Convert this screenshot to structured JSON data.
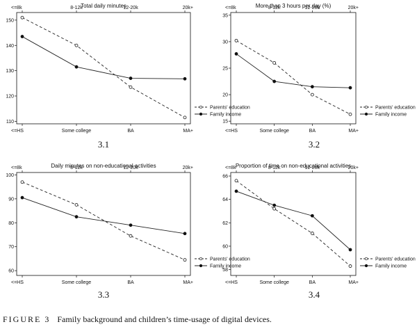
{
  "figure": {
    "caption_label": "FIGURE 3",
    "caption_text": "Family background and children’s time-usage of digital devices."
  },
  "chart_data": [
    {
      "type": "line",
      "panel_label": "3.1",
      "title": "Total daily minutes",
      "x_bottom": [
        "<=HS",
        "Some college",
        "BA",
        "MA+"
      ],
      "x_top": [
        "<=8k",
        "8-12k",
        "12-20k",
        "20k+"
      ],
      "ylim": [
        109,
        153
      ],
      "yticks": [
        110,
        120,
        130,
        140,
        150
      ],
      "series": [
        {
          "name": "Parents' education",
          "style": "dashed",
          "marker": "open-circle",
          "values": [
            151,
            140,
            123.5,
            111.5
          ]
        },
        {
          "name": "Family income",
          "style": "solid",
          "marker": "filled-circle",
          "values": [
            143.5,
            131.5,
            127,
            126.8
          ]
        }
      ],
      "legend": "bottom-right"
    },
    {
      "type": "line",
      "panel_label": "3.2",
      "title": "More than 3 hours per day (%)",
      "x_bottom": [
        "<=HS",
        "Some college",
        "BA",
        "MA+"
      ],
      "x_top": [
        "<=8k",
        "8-12k",
        "12-20k",
        "20k+"
      ],
      "ylim": [
        14.5,
        35.5
      ],
      "yticks": [
        15,
        20,
        25,
        30,
        35
      ],
      "series": [
        {
          "name": "Parents' education",
          "style": "dashed",
          "marker": "open-circle",
          "values": [
            30.2,
            26,
            20,
            16.3
          ]
        },
        {
          "name": "Family income",
          "style": "solid",
          "marker": "filled-circle",
          "values": [
            27.7,
            22.5,
            21.5,
            21.3
          ]
        }
      ],
      "legend": "bottom-right"
    },
    {
      "type": "line",
      "panel_label": "3.3",
      "title": "Daily minutes on non-educational activities",
      "x_bottom": [
        "<=HS",
        "Some college",
        "BA",
        "MA+"
      ],
      "x_top": [
        "<=8k",
        "8-12k",
        "12-20k",
        "20k+"
      ],
      "ylim": [
        58,
        101
      ],
      "yticks": [
        60,
        70,
        80,
        90,
        100
      ],
      "series": [
        {
          "name": "Parents' education",
          "style": "dashed",
          "marker": "open-circle",
          "values": [
            97,
            87.5,
            74.5,
            64.5
          ]
        },
        {
          "name": "Family income",
          "style": "solid",
          "marker": "filled-circle",
          "values": [
            90.5,
            82.5,
            79,
            75.5
          ]
        }
      ],
      "legend": "bottom-right"
    },
    {
      "type": "line",
      "panel_label": "3.4",
      "title": "Proportion of time on non-educational activities",
      "x_bottom": [
        "<=HS",
        "Some college",
        "BA",
        "MA+"
      ],
      "x_top": [
        "<=8k",
        "8-12k",
        "12-20k",
        "20k+"
      ],
      "ylim": [
        57.5,
        66.3
      ],
      "yticks": [
        58,
        60,
        62,
        64,
        66
      ],
      "series": [
        {
          "name": "Parents' education",
          "style": "dashed",
          "marker": "open-circle",
          "values": [
            65.6,
            63.2,
            61.1,
            58.3
          ]
        },
        {
          "name": "Family income",
          "style": "solid",
          "marker": "filled-circle",
          "values": [
            64.7,
            63.5,
            62.6,
            59.7
          ]
        }
      ],
      "legend": "bottom-right"
    }
  ]
}
